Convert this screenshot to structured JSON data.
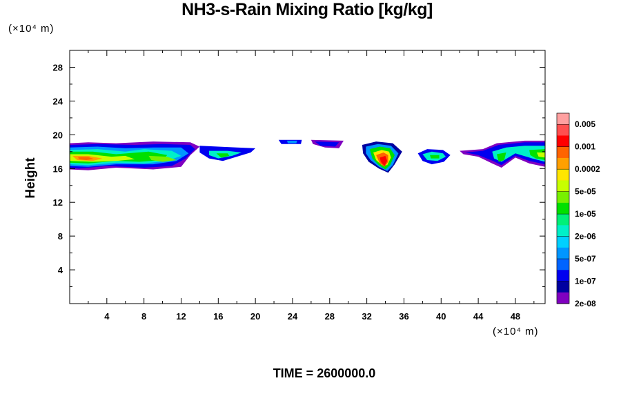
{
  "chart_data": {
    "type": "heatmap",
    "title": "NH3-s-Rain Mixing Ratio [kg/kg]",
    "ylabel": "Height",
    "xlabel": "",
    "x_unit": "(×10⁴ m)",
    "y_unit": "(×10⁴ m)",
    "xlim": [
      0,
      51.2
    ],
    "ylim": [
      0,
      30
    ],
    "x_ticks": [
      4,
      8,
      12,
      16,
      20,
      24,
      28,
      32,
      36,
      40,
      44,
      48
    ],
    "y_ticks": [
      4,
      8,
      12,
      16,
      20,
      24,
      28
    ],
    "x_tick_labels": [
      "4",
      "8",
      "12",
      "16",
      "20",
      "24",
      "28",
      "32",
      "36",
      "40",
      "44",
      "48"
    ],
    "y_tick_labels": [
      "4",
      "8",
      "12",
      "16",
      "20",
      "24",
      "28"
    ],
    "colorbar": {
      "labels": [
        "0.005",
        "0.001",
        "0.0002",
        "5e-05",
        "1e-05",
        "2e-06",
        "5e-07",
        "1e-07",
        "2e-08"
      ],
      "colors": [
        "#ffa0a0",
        "#ff5050",
        "#ff0000",
        "#ff6400",
        "#ffa000",
        "#ffe600",
        "#c8ff00",
        "#78f000",
        "#00e000",
        "#00f078",
        "#00f0c8",
        "#00d0ff",
        "#0096ff",
        "#0064ff",
        "#0000f0",
        "#0000a0",
        "#8000c0"
      ]
    },
    "regions": [
      {
        "x": [
          0,
          14
        ],
        "y": [
          15.8,
          19.2
        ],
        "level": "1e-05 to 0.001"
      },
      {
        "x": [
          14,
          20
        ],
        "y": [
          17,
          18.8
        ],
        "level": "2e-08 to 1e-05"
      },
      {
        "x": [
          22.5,
          25
        ],
        "y": [
          18.8,
          19.4
        ],
        "level": "2e-08 to 1e-07"
      },
      {
        "x": [
          26,
          29.5
        ],
        "y": [
          18.3,
          19.4
        ],
        "level": "2e-08 to 1e-07"
      },
      {
        "x": [
          31.5,
          35.8
        ],
        "y": [
          15.5,
          19.2
        ],
        "level": "2e-08 to 0.005"
      },
      {
        "x": [
          37.5,
          41
        ],
        "y": [
          16.5,
          18.2
        ],
        "level": "2e-08 to 1e-05"
      },
      {
        "x": [
          42,
          51.2
        ],
        "y": [
          15.8,
          19.2
        ],
        "level": "2e-08 to 5e-05"
      }
    ]
  },
  "footer": {
    "time_label": "TIME = 2600000.0"
  }
}
